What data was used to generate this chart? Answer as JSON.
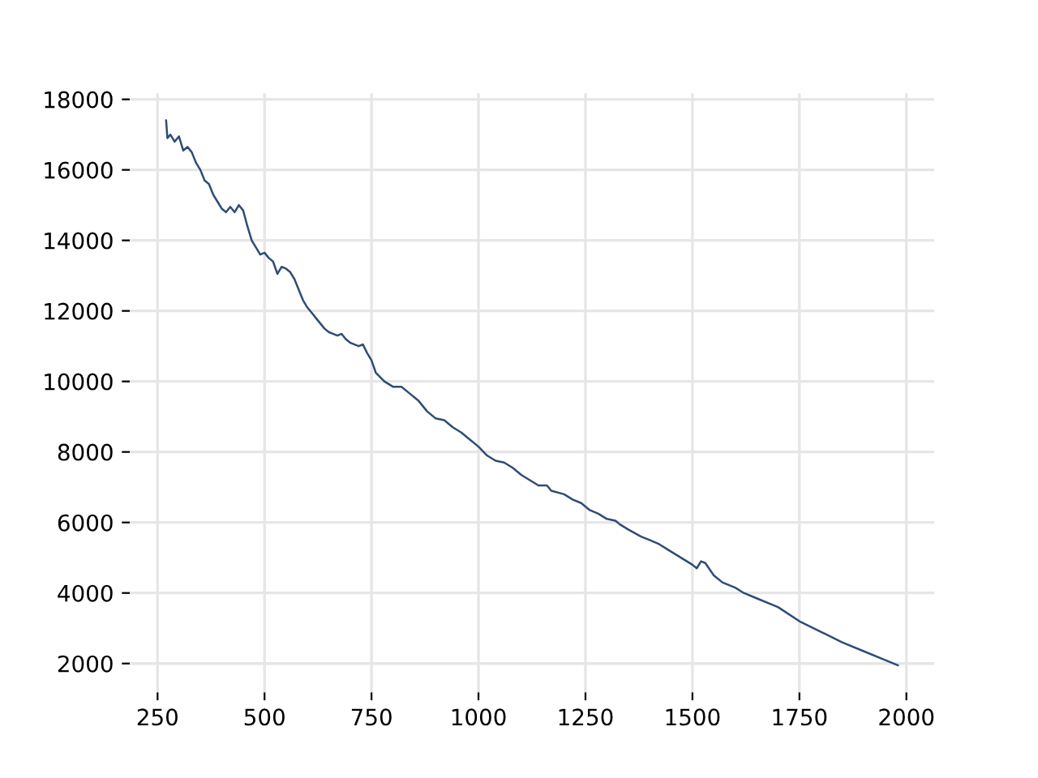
{
  "chart_data": {
    "type": "line",
    "xlim": [
      185,
      2065
    ],
    "ylim": [
      1180,
      18170
    ],
    "xticks": [
      250,
      500,
      750,
      1000,
      1250,
      1500,
      1750,
      2000
    ],
    "yticks": [
      2000,
      4000,
      6000,
      8000,
      10000,
      12000,
      14000,
      16000,
      18000
    ],
    "grid": true,
    "series": [
      {
        "color": "#2e4d75",
        "x": [
          270,
          273,
          280,
          290,
          300,
          310,
          320,
          330,
          340,
          350,
          360,
          370,
          380,
          390,
          400,
          410,
          420,
          430,
          440,
          450,
          460,
          470,
          480,
          490,
          500,
          510,
          520,
          530,
          540,
          550,
          560,
          570,
          580,
          590,
          600,
          610,
          620,
          630,
          640,
          650,
          660,
          670,
          680,
          690,
          700,
          720,
          730,
          740,
          750,
          760,
          780,
          800,
          820,
          840,
          860,
          880,
          900,
          920,
          940,
          960,
          980,
          1000,
          1020,
          1040,
          1060,
          1080,
          1100,
          1120,
          1140,
          1160,
          1170,
          1200,
          1220,
          1240,
          1260,
          1280,
          1300,
          1320,
          1330,
          1350,
          1380,
          1400,
          1420,
          1440,
          1460,
          1480,
          1500,
          1510,
          1520,
          1530,
          1550,
          1570,
          1600,
          1620,
          1650,
          1700,
          1750,
          1800,
          1850,
          1900,
          1950,
          1980
        ],
        "values": [
          17400,
          16900,
          17000,
          16800,
          16950,
          16550,
          16650,
          16500,
          16200,
          16000,
          15700,
          15600,
          15300,
          15100,
          14900,
          14800,
          14950,
          14800,
          15000,
          14850,
          14400,
          14000,
          13800,
          13600,
          13650,
          13500,
          13400,
          13050,
          13250,
          13200,
          13100,
          12900,
          12600,
          12300,
          12100,
          11950,
          11800,
          11650,
          11500,
          11400,
          11350,
          11300,
          11350,
          11200,
          11100,
          11000,
          11050,
          10800,
          10600,
          10250,
          10000,
          9850,
          9850,
          9650,
          9450,
          9150,
          8950,
          8900,
          8700,
          8550,
          8350,
          8150,
          7900,
          7750,
          7700,
          7550,
          7350,
          7200,
          7050,
          7050,
          6900,
          6800,
          6650,
          6550,
          6350,
          6250,
          6100,
          6050,
          5950,
          5800,
          5600,
          5500,
          5400,
          5250,
          5100,
          4950,
          4800,
          4700,
          4900,
          4850,
          4500,
          4300,
          4150,
          4000,
          3850,
          3600,
          3200,
          2900,
          2600,
          2350,
          2100,
          1950
        ]
      }
    ]
  }
}
